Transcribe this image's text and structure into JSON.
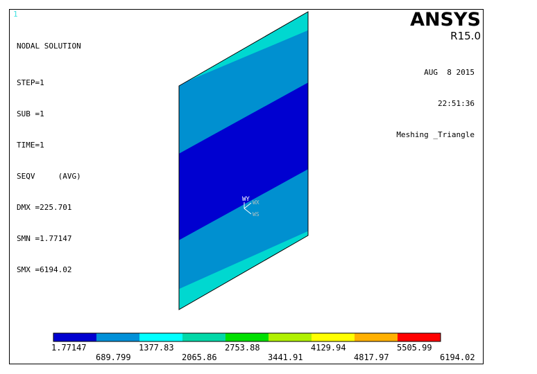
{
  "window_number": "1",
  "info": {
    "title": "NODAL SOLUTION",
    "step": "STEP=1",
    "sub": "SUB =1",
    "time": "TIME=1",
    "seqv": "SEQV     (AVG)",
    "dmx": "DMX =225.701",
    "smn": "SMN =1.77147",
    "smx": "SMX =6194.02"
  },
  "brand": {
    "name": "ANSYS",
    "release": "R15.0"
  },
  "stamp": {
    "date": "AUG  8 2015",
    "time": "22:51:36",
    "model": "Meshing _Triangle"
  },
  "triad": {
    "wy": "WY",
    "wx": "WX",
    "ws": "WS"
  },
  "legend": {
    "colors": [
      "#0000d0",
      "#0090d8",
      "#00ffff",
      "#00d8a8",
      "#00e000",
      "#b0f000",
      "#ffff00",
      "#ffb000",
      "#ff0000"
    ],
    "upper_labels": [
      "1.77147",
      "1377.83",
      "2753.88",
      "4129.94",
      "5505.99"
    ],
    "lower_labels": [
      "689.799",
      "2065.86",
      "3441.91",
      "4817.97",
      "6194.02"
    ]
  },
  "colors": {
    "band_outer": "#00d8d0",
    "band_mid": "#0090d0",
    "band_core": "#0000d0",
    "window_number": "#3fe0e0"
  }
}
